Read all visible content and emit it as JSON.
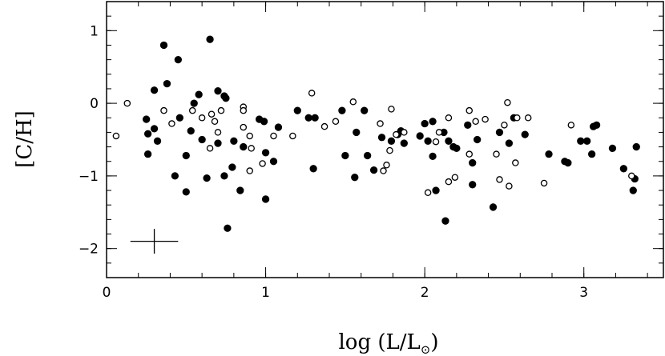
{
  "chart_data": {
    "type": "scatter",
    "title": "",
    "xlabel_main": "log (L/L",
    "xlabel_sub": "⊙",
    "xlabel_close": ")",
    "ylabel": "[C/H]",
    "xlim": [
      0,
      3.5
    ],
    "ylim": [
      -2.4,
      1.4
    ],
    "x_ticks": [
      0,
      1,
      2,
      3
    ],
    "x_tick_labels": [
      "0",
      "1",
      "2",
      "3"
    ],
    "y_ticks": [
      1,
      0,
      -1,
      -2
    ],
    "y_tick_labels": [
      "1",
      "0",
      "−1",
      "−2"
    ],
    "x_minor_step": 0.2,
    "y_minor_step": 0.2,
    "grid": false,
    "legend": false,
    "error_bar": {
      "x": 0.3,
      "y": -1.9,
      "x_err": 0.15,
      "y_err": 0.17
    },
    "series": [
      {
        "marker": "filled",
        "points": [
          [
            0.36,
            0.8
          ],
          [
            0.65,
            0.88
          ],
          [
            0.45,
            0.6
          ],
          [
            0.38,
            0.27
          ],
          [
            0.3,
            0.18
          ],
          [
            0.25,
            -0.22
          ],
          [
            0.3,
            -0.35
          ],
          [
            0.26,
            -0.42
          ],
          [
            0.32,
            -0.52
          ],
          [
            0.26,
            -0.7
          ],
          [
            0.43,
            -1.0
          ],
          [
            0.5,
            -1.22
          ],
          [
            0.46,
            -0.2
          ],
          [
            0.55,
            0.0
          ],
          [
            0.58,
            0.12
          ],
          [
            0.53,
            -0.38
          ],
          [
            0.5,
            -0.72
          ],
          [
            0.6,
            -0.5
          ],
          [
            0.63,
            -1.03
          ],
          [
            0.7,
            0.17
          ],
          [
            0.74,
            0.1
          ],
          [
            0.75,
            0.07
          ],
          [
            0.7,
            -0.55
          ],
          [
            0.74,
            -1.0
          ],
          [
            0.79,
            -0.88
          ],
          [
            0.76,
            -1.72
          ],
          [
            0.84,
            -1.2
          ],
          [
            0.8,
            -0.52
          ],
          [
            0.86,
            -0.6
          ],
          [
            0.96,
            -0.22
          ],
          [
            0.99,
            -0.25
          ],
          [
            1.0,
            -0.68
          ],
          [
            1.05,
            -0.8
          ],
          [
            1.08,
            -0.33
          ],
          [
            1.0,
            -1.32
          ],
          [
            1.2,
            -0.1
          ],
          [
            1.27,
            -0.2
          ],
          [
            1.31,
            -0.2
          ],
          [
            1.3,
            -0.9
          ],
          [
            1.48,
            -0.1
          ],
          [
            1.5,
            -0.72
          ],
          [
            1.56,
            -1.02
          ],
          [
            1.57,
            -0.4
          ],
          [
            1.62,
            -0.1
          ],
          [
            1.64,
            -0.72
          ],
          [
            1.68,
            -0.92
          ],
          [
            1.73,
            -0.47
          ],
          [
            1.79,
            -0.52
          ],
          [
            1.85,
            -0.38
          ],
          [
            1.83,
            -0.43
          ],
          [
            1.87,
            -0.55
          ],
          [
            1.97,
            -0.45
          ],
          [
            2.0,
            -0.28
          ],
          [
            2.02,
            -0.52
          ],
          [
            2.05,
            -0.25
          ],
          [
            2.05,
            -0.73
          ],
          [
            2.07,
            -1.2
          ],
          [
            2.12,
            -0.4
          ],
          [
            2.13,
            -1.62
          ],
          [
            2.15,
            -0.52
          ],
          [
            2.18,
            -0.6
          ],
          [
            2.2,
            -0.62
          ],
          [
            2.27,
            -0.3
          ],
          [
            2.3,
            -0.82
          ],
          [
            2.3,
            -1.12
          ],
          [
            2.33,
            -0.5
          ],
          [
            2.43,
            -1.43
          ],
          [
            2.47,
            -0.4
          ],
          [
            2.53,
            -0.55
          ],
          [
            2.56,
            -0.2
          ],
          [
            2.63,
            -0.43
          ],
          [
            2.78,
            -0.7
          ],
          [
            2.88,
            -0.8
          ],
          [
            2.9,
            -0.82
          ],
          [
            2.98,
            -0.52
          ],
          [
            3.02,
            -0.52
          ],
          [
            3.05,
            -0.7
          ],
          [
            3.06,
            -0.32
          ],
          [
            3.08,
            -0.3
          ],
          [
            3.18,
            -0.62
          ],
          [
            3.25,
            -0.9
          ],
          [
            3.31,
            -1.2
          ],
          [
            3.32,
            -1.04
          ],
          [
            3.33,
            -0.6
          ]
        ]
      },
      {
        "marker": "open",
        "points": [
          [
            0.06,
            -0.45
          ],
          [
            0.13,
            0.0
          ],
          [
            0.36,
            -0.1
          ],
          [
            0.41,
            -0.28
          ],
          [
            0.54,
            -0.1
          ],
          [
            0.6,
            -0.2
          ],
          [
            0.66,
            -0.15
          ],
          [
            0.68,
            -0.25
          ],
          [
            0.72,
            -0.1
          ],
          [
            0.65,
            -0.62
          ],
          [
            0.7,
            -0.4
          ],
          [
            0.86,
            -0.05
          ],
          [
            0.86,
            -0.1
          ],
          [
            0.86,
            -0.33
          ],
          [
            0.9,
            -0.45
          ],
          [
            0.91,
            -0.62
          ],
          [
            0.9,
            -0.93
          ],
          [
            0.98,
            -0.83
          ],
          [
            1.05,
            -0.45
          ],
          [
            1.17,
            -0.45
          ],
          [
            1.29,
            0.14
          ],
          [
            1.37,
            -0.32
          ],
          [
            1.44,
            -0.25
          ],
          [
            1.55,
            0.02
          ],
          [
            1.72,
            -0.28
          ],
          [
            1.76,
            -0.85
          ],
          [
            1.74,
            -0.93
          ],
          [
            1.78,
            -0.65
          ],
          [
            1.79,
            -0.08
          ],
          [
            1.82,
            -0.43
          ],
          [
            1.87,
            -0.4
          ],
          [
            2.02,
            -1.23
          ],
          [
            2.07,
            -0.53
          ],
          [
            2.09,
            -0.4
          ],
          [
            2.15,
            -0.2
          ],
          [
            2.15,
            -1.08
          ],
          [
            2.19,
            -1.02
          ],
          [
            2.28,
            -0.1
          ],
          [
            2.28,
            -0.7
          ],
          [
            2.32,
            -0.25
          ],
          [
            2.38,
            -0.22
          ],
          [
            2.45,
            -0.7
          ],
          [
            2.47,
            -1.05
          ],
          [
            2.5,
            -0.3
          ],
          [
            2.52,
            0.01
          ],
          [
            2.53,
            -1.14
          ],
          [
            2.57,
            -0.82
          ],
          [
            2.58,
            -0.2
          ],
          [
            2.65,
            -0.2
          ],
          [
            2.75,
            -1.1
          ],
          [
            2.92,
            -0.3
          ],
          [
            3.3,
            -1.0
          ]
        ]
      }
    ]
  }
}
